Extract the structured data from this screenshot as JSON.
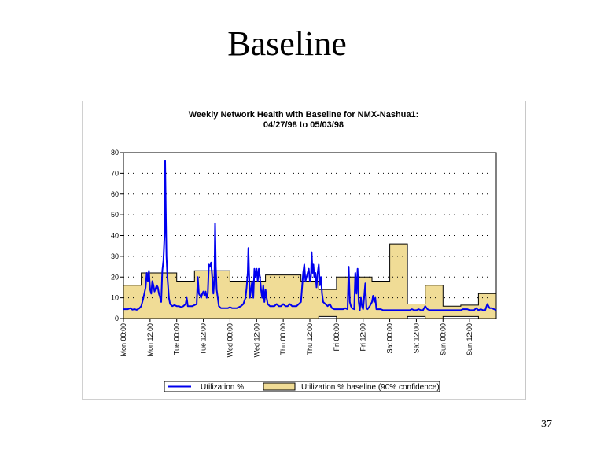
{
  "slide": {
    "title": "Baseline",
    "page_number": "37"
  },
  "colors": {
    "utilization": "#0000ee",
    "baseline_fill": "#f0dc96",
    "baseline_stroke": "#000000",
    "grid": "#000000"
  },
  "chart_data": {
    "type": "line",
    "title": "Weekly Network Health with Baseline for NMX-Nashua1:",
    "subtitle": "04/27/98 to 05/03/98",
    "xlabel": "",
    "ylabel": "",
    "ylim": [
      0,
      80
    ],
    "xlim": [
      0,
      168
    ],
    "grid": true,
    "grid_style": "dotted horizontal",
    "legend_placement": "bottom",
    "y_ticks": [
      "0",
      "10",
      "20",
      "30",
      "40",
      "50",
      "60",
      "70",
      "80"
    ],
    "x_ticks": [
      {
        "x": 0,
        "label": "Mon 00:00"
      },
      {
        "x": 12,
        "label": "Mon 12:00"
      },
      {
        "x": 24,
        "label": "Tue 00:00"
      },
      {
        "x": 36,
        "label": "Tue 12:00"
      },
      {
        "x": 48,
        "label": "Wed 00:00"
      },
      {
        "x": 60,
        "label": "Wed 12:00"
      },
      {
        "x": 72,
        "label": "Thu 00:00"
      },
      {
        "x": 84,
        "label": "Thu 12:00"
      },
      {
        "x": 96,
        "label": "Fri 00:00"
      },
      {
        "x": 108,
        "label": "Fri 12:00"
      },
      {
        "x": 120,
        "label": "Sat 00:00"
      },
      {
        "x": 132,
        "label": "Sat 12:00"
      },
      {
        "x": 144,
        "label": "Sun 00:00"
      },
      {
        "x": 156,
        "label": "Sun 12:00"
      }
    ],
    "series": [
      {
        "name": "Utilization %",
        "style": "line",
        "points": [
          [
            0,
            4.5
          ],
          [
            2,
            4.5
          ],
          [
            3,
            5
          ],
          [
            4,
            4.3
          ],
          [
            5,
            4.5
          ],
          [
            6,
            4.2
          ],
          [
            7,
            4.8
          ],
          [
            8,
            6
          ],
          [
            9,
            10
          ],
          [
            10,
            15
          ],
          [
            10.5,
            22
          ],
          [
            11,
            18
          ],
          [
            11.5,
            23
          ],
          [
            12,
            14
          ],
          [
            12.5,
            12
          ],
          [
            13,
            18
          ],
          [
            13.5,
            16
          ],
          [
            14,
            13
          ],
          [
            15,
            16
          ],
          [
            15.5,
            15
          ],
          [
            16,
            12
          ],
          [
            16.5,
            10
          ],
          [
            17,
            8
          ],
          [
            17.5,
            23
          ],
          [
            18,
            28
          ],
          [
            18.5,
            40
          ],
          [
            18.8,
            76
          ],
          [
            19.1,
            50
          ],
          [
            19.4,
            30
          ],
          [
            19.8,
            20
          ],
          [
            20.5,
            10
          ],
          [
            21,
            7
          ],
          [
            22,
            6
          ],
          [
            23,
            6.5
          ],
          [
            24,
            6
          ],
          [
            25,
            6
          ],
          [
            26,
            5.5
          ],
          [
            27,
            6
          ],
          [
            28,
            7
          ],
          [
            28.5,
            10
          ],
          [
            29,
            6
          ],
          [
            30,
            6
          ],
          [
            31,
            6
          ],
          [
            32,
            6.5
          ],
          [
            33,
            7
          ],
          [
            33.5,
            20
          ],
          [
            34,
            12
          ],
          [
            35,
            10
          ],
          [
            35.5,
            12
          ],
          [
            36,
            13
          ],
          [
            36.5,
            11
          ],
          [
            37,
            13
          ],
          [
            37.5,
            10
          ],
          [
            38,
            12
          ],
          [
            38.5,
            26
          ],
          [
            39,
            25
          ],
          [
            39.5,
            27
          ],
          [
            40,
            20
          ],
          [
            40.5,
            12
          ],
          [
            41,
            20
          ],
          [
            41.3,
            46
          ],
          [
            41.6,
            25
          ],
          [
            42,
            14
          ],
          [
            43,
            6
          ],
          [
            44,
            5
          ],
          [
            45,
            5
          ],
          [
            46,
            5
          ],
          [
            47,
            5
          ],
          [
            48,
            5.5
          ],
          [
            49,
            5
          ],
          [
            50,
            5
          ],
          [
            51,
            5
          ],
          [
            52,
            5.5
          ],
          [
            53,
            6
          ],
          [
            54,
            7
          ],
          [
            55,
            10
          ],
          [
            55.5,
            15
          ],
          [
            56,
            22
          ],
          [
            56.3,
            34
          ],
          [
            56.6,
            22
          ],
          [
            57,
            10
          ],
          [
            57.5,
            14
          ],
          [
            58,
            18
          ],
          [
            58.5,
            10
          ],
          [
            59,
            24
          ],
          [
            59.5,
            20
          ],
          [
            60,
            24
          ],
          [
            60.5,
            18
          ],
          [
            61,
            24
          ],
          [
            61.5,
            20
          ],
          [
            62,
            14
          ],
          [
            62.5,
            10
          ],
          [
            63,
            16
          ],
          [
            63.5,
            8
          ],
          [
            64,
            14
          ],
          [
            64.5,
            10
          ],
          [
            65,
            7
          ],
          [
            66,
            6
          ],
          [
            67,
            6
          ],
          [
            68,
            6
          ],
          [
            69,
            7
          ],
          [
            70,
            6
          ],
          [
            71,
            6
          ],
          [
            72,
            7
          ],
          [
            73,
            6
          ],
          [
            74,
            6
          ],
          [
            75,
            7
          ],
          [
            76,
            6
          ],
          [
            77,
            6
          ],
          [
            78,
            6
          ],
          [
            79,
            7
          ],
          [
            80,
            8
          ],
          [
            80.5,
            15
          ],
          [
            81,
            22
          ],
          [
            81.5,
            26
          ],
          [
            82,
            18
          ],
          [
            82.5,
            20
          ],
          [
            83,
            22
          ],
          [
            83.5,
            24
          ],
          [
            84,
            18
          ],
          [
            84.5,
            20
          ],
          [
            84.8,
            32
          ],
          [
            85.2,
            22
          ],
          [
            85.6,
            26
          ],
          [
            86,
            20
          ],
          [
            86.5,
            22
          ],
          [
            87,
            15
          ],
          [
            87.5,
            22
          ],
          [
            88,
            26
          ],
          [
            88.5,
            16
          ],
          [
            89,
            20
          ],
          [
            89.5,
            12
          ],
          [
            90,
            8
          ],
          [
            91,
            7
          ],
          [
            92,
            6
          ],
          [
            93,
            7
          ],
          [
            94,
            5
          ],
          [
            95,
            4.5
          ],
          [
            96,
            4.5
          ],
          [
            97,
            4.5
          ],
          [
            98,
            4.5
          ],
          [
            99,
            4.5
          ],
          [
            100,
            5
          ],
          [
            101,
            4.5
          ],
          [
            101.5,
            25
          ],
          [
            102,
            8
          ],
          [
            102.5,
            6
          ],
          [
            103,
            5
          ],
          [
            104,
            4.5
          ],
          [
            104.5,
            22
          ],
          [
            105,
            12
          ],
          [
            105.5,
            24
          ],
          [
            106,
            8
          ],
          [
            106.5,
            4
          ],
          [
            107,
            10
          ],
          [
            107.5,
            6
          ],
          [
            108,
            4.5
          ],
          [
            109,
            17
          ],
          [
            109.5,
            5
          ],
          [
            110,
            4.5
          ],
          [
            111,
            6
          ],
          [
            112,
            8
          ],
          [
            112.5,
            11
          ],
          [
            113,
            8
          ],
          [
            113.5,
            10
          ],
          [
            114,
            4.5
          ],
          [
            115,
            4.5
          ],
          [
            116,
            4.5
          ],
          [
            117,
            4
          ],
          [
            118,
            4
          ],
          [
            119,
            4
          ],
          [
            120,
            4
          ],
          [
            121,
            4
          ],
          [
            122,
            4
          ],
          [
            123,
            4
          ],
          [
            124,
            4
          ],
          [
            125,
            4
          ],
          [
            126,
            4
          ],
          [
            127,
            4
          ],
          [
            128,
            4
          ],
          [
            129,
            4
          ],
          [
            130,
            4.5
          ],
          [
            131,
            4
          ],
          [
            132,
            4
          ],
          [
            133,
            4.5
          ],
          [
            134,
            4
          ],
          [
            135,
            4
          ],
          [
            136,
            6
          ],
          [
            137,
            4.5
          ],
          [
            138,
            4
          ],
          [
            139,
            4
          ],
          [
            140,
            4
          ],
          [
            141,
            4
          ],
          [
            142,
            4
          ],
          [
            143,
            4
          ],
          [
            144,
            4
          ],
          [
            145,
            4
          ],
          [
            146,
            4
          ],
          [
            147,
            4
          ],
          [
            148,
            4
          ],
          [
            149,
            4
          ],
          [
            150,
            4
          ],
          [
            151,
            4
          ],
          [
            152,
            4
          ],
          [
            153,
            4.5
          ],
          [
            154,
            4.5
          ],
          [
            155,
            4.5
          ],
          [
            156,
            4
          ],
          [
            157,
            4
          ],
          [
            158,
            4
          ],
          [
            159,
            5
          ],
          [
            160,
            4
          ],
          [
            161,
            4.5
          ],
          [
            162,
            4
          ],
          [
            163,
            4
          ],
          [
            164,
            7
          ],
          [
            165,
            5
          ],
          [
            166,
            5
          ],
          [
            167,
            4.5
          ],
          [
            168,
            4
          ]
        ]
      },
      {
        "name": "Utilization % baseline (90% confidence)",
        "style": "band",
        "upper": [
          [
            0,
            16
          ],
          [
            8,
            16
          ],
          [
            8,
            22
          ],
          [
            24,
            22
          ],
          [
            24,
            18
          ],
          [
            32,
            18
          ],
          [
            32,
            23
          ],
          [
            48,
            23
          ],
          [
            48,
            18
          ],
          [
            64,
            18
          ],
          [
            64,
            21
          ],
          [
            80,
            21
          ],
          [
            80,
            18
          ],
          [
            88,
            18
          ],
          [
            88,
            14
          ],
          [
            96,
            14
          ],
          [
            96,
            20
          ],
          [
            112,
            20
          ],
          [
            112,
            18
          ],
          [
            120,
            18
          ],
          [
            120,
            36
          ],
          [
            128,
            36
          ],
          [
            128,
            7
          ],
          [
            136,
            7
          ],
          [
            136,
            16
          ],
          [
            144,
            16
          ],
          [
            144,
            6
          ],
          [
            152,
            6
          ],
          [
            152,
            6.5
          ],
          [
            160,
            6.5
          ],
          [
            160,
            12
          ],
          [
            168,
            12
          ]
        ],
        "lower": [
          [
            0,
            0
          ],
          [
            88,
            0
          ],
          [
            88,
            1
          ],
          [
            96,
            1
          ],
          [
            96,
            0
          ],
          [
            128,
            0
          ],
          [
            128,
            1
          ],
          [
            136,
            1
          ],
          [
            136,
            0
          ],
          [
            144,
            0
          ],
          [
            144,
            1
          ],
          [
            160,
            1
          ],
          [
            160,
            0
          ],
          [
            168,
            0
          ]
        ]
      }
    ]
  }
}
